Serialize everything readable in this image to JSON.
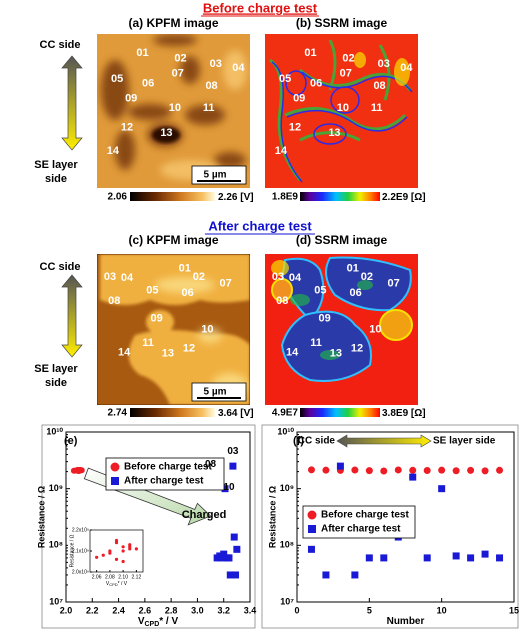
{
  "before_heading": "Before charge test",
  "after_heading": "After charge test",
  "side_labels": {
    "top": "CC side",
    "bottom": [
      "SE layer",
      "side"
    ]
  },
  "panels": [
    {
      "title": "(a) KPFM image",
      "grains": [
        "01",
        "02",
        "03",
        "04",
        "05",
        "06",
        "07",
        "08",
        "09",
        "10",
        "11",
        "12",
        "13",
        "14"
      ],
      "scale_bar": "5 µm",
      "colorbar": {
        "min": "2.06",
        "max": "2.26",
        "unit": "[V]"
      }
    },
    {
      "title": "(b) SSRM image",
      "grains": [
        "01",
        "02",
        "03",
        "04",
        "05",
        "06",
        "07",
        "08",
        "09",
        "10",
        "11",
        "12",
        "13",
        "14"
      ],
      "colorbar": {
        "min": "1.8E9",
        "max": "2.2E9",
        "unit": "[Ω]"
      }
    },
    {
      "title": "(c) KPFM image",
      "grains": [
        "01",
        "02",
        "03",
        "04",
        "05",
        "06",
        "07",
        "08",
        "09",
        "10",
        "11",
        "12",
        "13",
        "14"
      ],
      "scale_bar": "5 µm",
      "colorbar": {
        "min": "2.74",
        "max": "3.64",
        "unit": "[V]"
      }
    },
    {
      "title": "(d) SSRM image",
      "grains": [
        "01",
        "02",
        "03",
        "04",
        "05",
        "06",
        "07",
        "08",
        "09",
        "10",
        "11",
        "12",
        "13",
        "14"
      ],
      "colorbar": {
        "min": "4.9E7",
        "max": "3.8E9",
        "unit": "[Ω]"
      }
    }
  ],
  "chart_data": [
    {
      "type": "scatter",
      "panel_label": "(e)",
      "log_y": true,
      "xlabel": [
        "V",
        "CPD",
        "* / V"
      ],
      "ylabel": "Resistance / Ω",
      "xlim": [
        2.0,
        3.4
      ],
      "ylim": [
        10000000,
        10000000000
      ],
      "xticks": [
        {
          "value": 2.0,
          "label": "2.0"
        },
        {
          "value": 2.2,
          "label": "2.2"
        },
        {
          "value": 2.4,
          "label": "2.4"
        },
        {
          "value": 2.6,
          "label": "2.6"
        },
        {
          "value": 2.8,
          "label": "2.8"
        },
        {
          "value": 3.0,
          "label": "3.0"
        },
        {
          "value": 3.2,
          "label": "3.2"
        },
        {
          "value": 3.4,
          "label": "3.4"
        }
      ],
      "yticks": [
        {
          "value": 10000000,
          "label": "10⁷"
        },
        {
          "value": 100000000,
          "label": "10⁸"
        },
        {
          "value": 1000000000,
          "label": "10⁹"
        },
        {
          "value": 10000000000,
          "label": "10¹⁰"
        }
      ],
      "series": [
        {
          "name": "Before charge test",
          "color": "#ee1c25",
          "marker": "circle",
          "x": [
            2.09,
            2.1,
            2.08,
            2.11,
            2.07,
            2.1,
            2.09,
            2.12,
            2.08,
            2.11,
            2.06,
            2.1,
            2.09,
            2.11
          ],
          "values": [
            2150000000,
            2120000000,
            2100000000,
            2130000000,
            2080000000,
            2050000000,
            2140000000,
            2110000000,
            2090000000,
            2120000000,
            2070000000,
            2100000000,
            2060000000,
            2110000000
          ]
        },
        {
          "name": "After charge test",
          "color": "#1a1ad6",
          "marker": "square",
          "x": [
            3.3,
            3.25,
            3.27,
            3.29,
            3.18,
            3.22,
            3.28,
            3.12,
            3.15,
            3.21,
            3.17,
            3.24,
            3.2,
            3.23
          ],
          "values": [
            85000000,
            30000000,
            2500000000,
            30000000,
            60000000,
            60000000,
            140000000,
            1600000000,
            60000000,
            1000000000,
            65000000,
            60000000,
            70000000,
            60000000
          ]
        }
      ],
      "annotations": [
        "08",
        "03",
        "10",
        "Charged"
      ],
      "inset": {
        "xlim": [
          2.05,
          2.13
        ],
        "ylim": [
          2000000000,
          2200000000
        ],
        "xticks": [
          2.06,
          2.08,
          {
            "value": 2.1,
            "label": "2.10"
          },
          2.12
        ],
        "yticks": [
          {
            "value": 2000000000,
            "label": "2.0x10⁹"
          },
          {
            "value": 2100000000,
            "label": "2.1x10⁹"
          },
          {
            "value": 2200000000,
            "label": "2.2x10⁹"
          }
        ],
        "xlabel": [
          "V",
          "CPD",
          "* / V"
        ],
        "ylabel": "Resistance / Ω"
      }
    },
    {
      "type": "scatter",
      "panel_label": "(f)",
      "log_y": true,
      "xlabel": [
        "Number"
      ],
      "ylabel": "Resistance / Ω",
      "xlim": [
        0,
        15
      ],
      "ylim": [
        10000000,
        10000000000
      ],
      "xticks": [
        0,
        5,
        10,
        15
      ],
      "yticks": [
        {
          "value": 10000000,
          "label": "10⁷"
        },
        {
          "value": 100000000,
          "label": "10⁸"
        },
        {
          "value": 1000000000,
          "label": "10⁹"
        },
        {
          "value": 10000000000,
          "label": "10¹⁰"
        }
      ],
      "series": [
        {
          "name": "Before charge test",
          "color": "#ee1c25",
          "marker": "circle",
          "x": [
            1,
            2,
            3,
            4,
            5,
            6,
            7,
            8,
            9,
            10,
            11,
            12,
            13,
            14
          ],
          "values": [
            2150000000,
            2120000000,
            2100000000,
            2130000000,
            2080000000,
            2050000000,
            2140000000,
            2110000000,
            2090000000,
            2120000000,
            2070000000,
            2100000000,
            2060000000,
            2110000000
          ]
        },
        {
          "name": "After charge test",
          "color": "#1a1ad6",
          "marker": "square",
          "x": [
            1,
            2,
            3,
            4,
            5,
            6,
            7,
            8,
            9,
            10,
            11,
            12,
            13,
            14
          ],
          "values": [
            85000000,
            30000000,
            2500000000,
            30000000,
            60000000,
            60000000,
            140000000,
            1600000000,
            60000000,
            1000000000,
            65000000,
            60000000,
            70000000,
            60000000
          ]
        }
      ],
      "annotations": [
        "CC side",
        "SE layer side"
      ]
    }
  ]
}
